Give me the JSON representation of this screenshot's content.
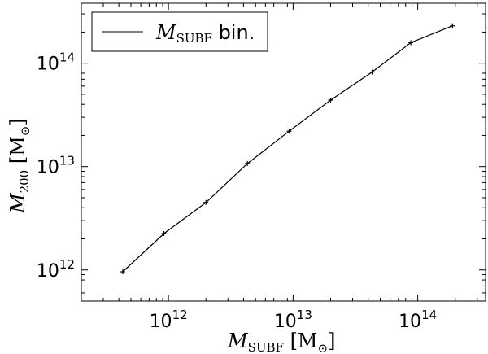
{
  "chart_data": {
    "type": "line",
    "x_scale": "log",
    "y_scale": "log",
    "xlim": [
      200000000000.0,
      350000000000000.0
    ],
    "ylim": [
      500000000000.0,
      380000000000000.0
    ],
    "x_ticks": [
      {
        "value": 1000000000000.0,
        "base": "10",
        "exp": "12"
      },
      {
        "value": 10000000000000.0,
        "base": "10",
        "exp": "13"
      },
      {
        "value": 100000000000000.0,
        "base": "10",
        "exp": "14"
      }
    ],
    "y_ticks": [
      {
        "value": 1000000000000.0,
        "base": "10",
        "exp": "12"
      },
      {
        "value": 10000000000000.0,
        "base": "10",
        "exp": "13"
      },
      {
        "value": 100000000000000.0,
        "base": "10",
        "exp": "14"
      }
    ],
    "xlabel": {
      "symbol": "M",
      "sub": "SUBF",
      "unit": " [M",
      "unit_sub": "⊙",
      "unit_close": "]"
    },
    "ylabel": {
      "symbol": "M",
      "sub": "200",
      "unit": "  [M",
      "unit_sub": "⊙",
      "unit_close": "]"
    },
    "legend": {
      "position": "upper-left"
    },
    "series": [
      {
        "name": "M_SUBF bin.",
        "legend_symbol": "M",
        "legend_sub": "SUBF",
        "legend_rest": " bin.",
        "color": "#000000",
        "marker": "+",
        "x": [
          430000000000.0,
          920000000000.0,
          2000000000000.0,
          4300000000000.0,
          9300000000000.0,
          20000000000000.0,
          43000000000000.0,
          88000000000000.0,
          190000000000000.0
        ],
        "y": [
          960000000000.0,
          2250000000000.0,
          4500000000000.0,
          10700000000000.0,
          22000000000000.0,
          44000000000000.0,
          82000000000000.0,
          158000000000000.0,
          230000000000000.0
        ]
      }
    ]
  }
}
